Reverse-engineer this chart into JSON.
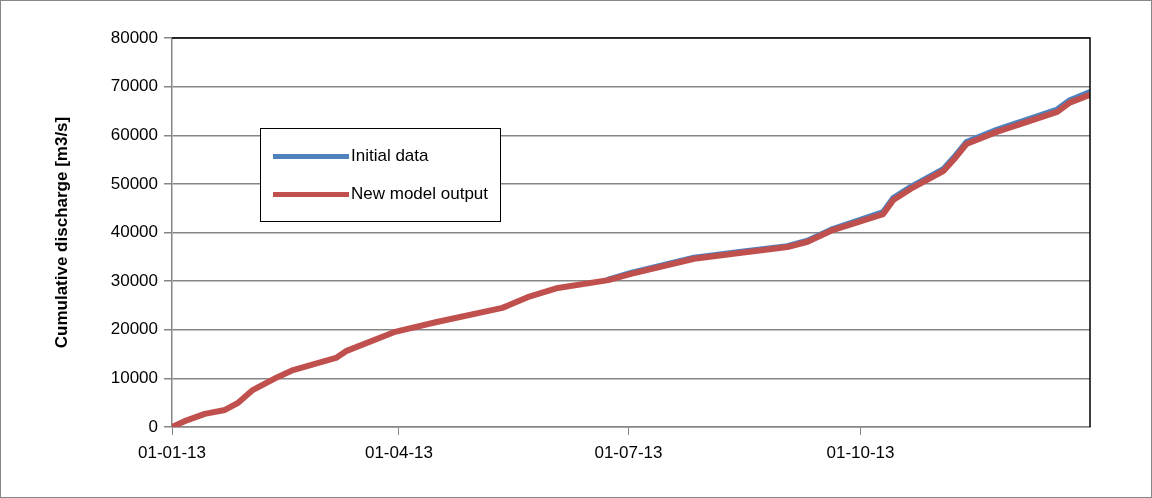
{
  "chart_data": {
    "type": "line",
    "ylabel": "Cumulative discharge [m3/s]",
    "x": [
      "2013-01-01",
      "2013-01-06",
      "2013-01-14",
      "2013-01-22",
      "2013-01-27",
      "2013-02-02",
      "2013-02-12",
      "2013-02-18",
      "2013-03-07",
      "2013-03-11",
      "2013-03-30",
      "2013-04-16",
      "2013-05-12",
      "2013-05-22",
      "2013-06-03",
      "2013-06-23",
      "2013-07-02",
      "2013-07-27",
      "2013-08-14",
      "2013-09-02",
      "2013-09-10",
      "2013-09-20",
      "2013-10-10",
      "2013-10-14",
      "2013-10-21",
      "2013-11-03",
      "2013-11-07",
      "2013-11-12",
      "2013-11-24",
      "2013-12-18",
      "2013-12-23",
      "2013-12-31"
    ],
    "series": [
      {
        "name": "Initial data",
        "color": "#4f81bd",
        "values": [
          null,
          null,
          null,
          null,
          null,
          null,
          null,
          null,
          null,
          null,
          null,
          null,
          null,
          null,
          null,
          30300,
          31700,
          34800,
          36000,
          37200,
          38300,
          40700,
          44200,
          47100,
          49400,
          53100,
          55400,
          58600,
          61100,
          65300,
          67200,
          68900
        ]
      },
      {
        "name": "New model output",
        "color": "#c0504d",
        "values": [
          0,
          1200,
          2700,
          3500,
          4900,
          7600,
          10300,
          11700,
          14200,
          15600,
          19500,
          21600,
          24500,
          26700,
          28600,
          30200,
          31500,
          34600,
          35800,
          37000,
          38100,
          40500,
          43800,
          46700,
          49000,
          52700,
          55000,
          58200,
          60700,
          64800,
          66700,
          68300
        ]
      }
    ],
    "xlim": [
      "2013-01-01",
      "2013-12-31"
    ],
    "xticks": [
      {
        "value": "2013-01-01",
        "label": "01-01-13"
      },
      {
        "value": "2013-04-01",
        "label": "01-04-13"
      },
      {
        "value": "2013-07-01",
        "label": "01-07-13"
      },
      {
        "value": "2013-10-01",
        "label": "01-10-13"
      }
    ],
    "ylim": [
      0,
      80000
    ],
    "yticks": [
      0,
      10000,
      20000,
      30000,
      40000,
      50000,
      60000,
      70000,
      80000
    ],
    "grid": "y",
    "legend": "top left",
    "marker": "none",
    "line_style": "solid"
  }
}
